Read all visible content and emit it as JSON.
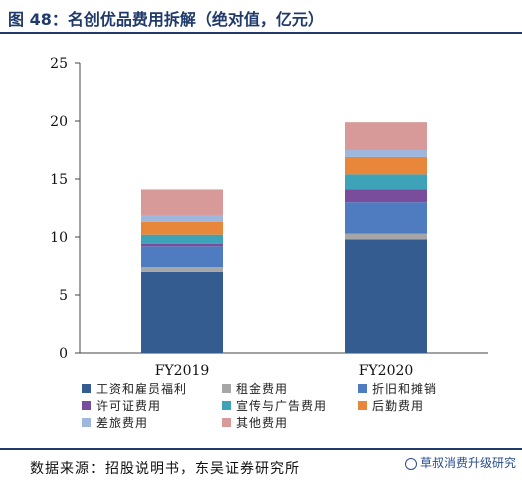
{
  "header": {
    "title": "图 48：名创优品费用拆解（绝对值，亿元）"
  },
  "chart_data": {
    "type": "bar",
    "stacked": true,
    "title": "",
    "xlabel": "",
    "ylabel": "",
    "categories": [
      "FY2019",
      "FY2020"
    ],
    "ylim": [
      0,
      25
    ],
    "yticks": [
      0,
      5,
      10,
      15,
      20,
      25
    ],
    "grid": false,
    "legend_position": "bottom",
    "series": [
      {
        "name": "工资和雇员福利",
        "color": "#355c91",
        "values": [
          7.0,
          9.8
        ]
      },
      {
        "name": "租金费用",
        "color": "#a6a6a6",
        "values": [
          0.4,
          0.5
        ]
      },
      {
        "name": "折旧和摊销",
        "color": "#4f7cc0",
        "values": [
          1.8,
          2.7
        ]
      },
      {
        "name": "许可证费用",
        "color": "#7a4d9c",
        "values": [
          0.2,
          1.1
        ]
      },
      {
        "name": "宣传与广告费用",
        "color": "#3ea3b8",
        "values": [
          0.8,
          1.3
        ]
      },
      {
        "name": "后勤费用",
        "color": "#e8863a",
        "values": [
          1.1,
          1.5
        ]
      },
      {
        "name": "差旅费用",
        "color": "#9fb6dd",
        "values": [
          0.6,
          0.6
        ]
      },
      {
        "name": "其他费用",
        "color": "#d89a98",
        "values": [
          2.2,
          2.4
        ]
      }
    ]
  },
  "footer": {
    "source": "数据来源：招股说明书，东吴证券研究所",
    "watermark": "草叔消费升级研究"
  }
}
